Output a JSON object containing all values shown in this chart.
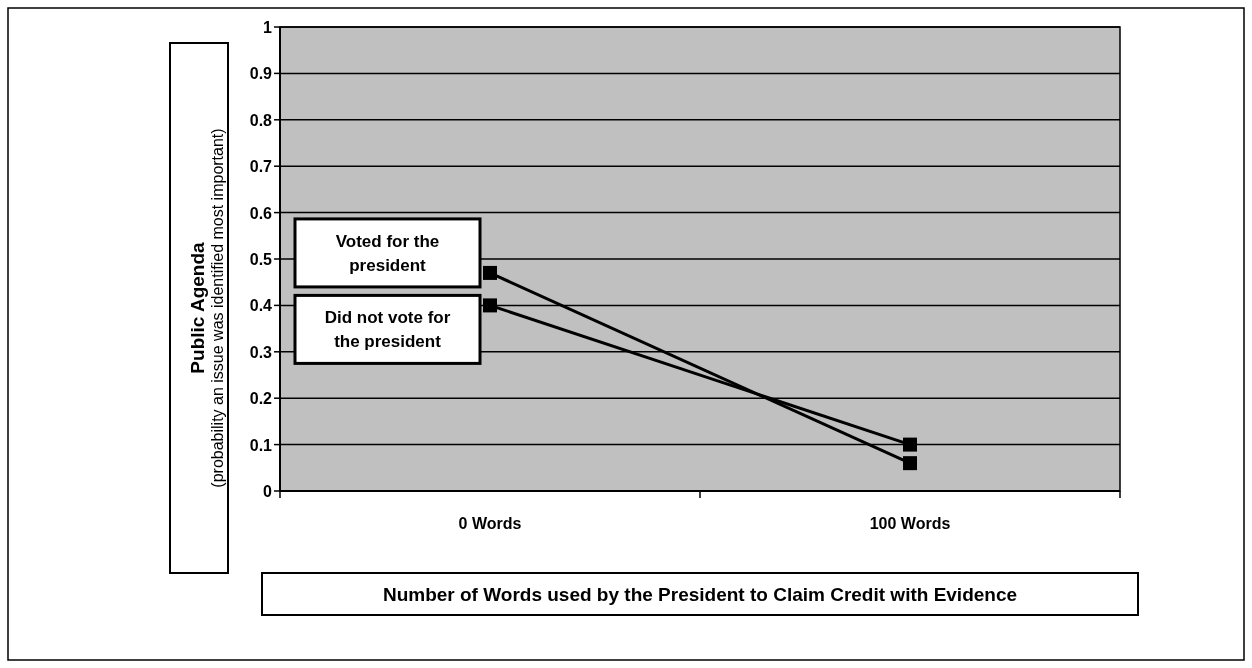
{
  "chart_data": {
    "type": "line",
    "xlabel": "Number of Words used by the President to Claim Credit with Evidence",
    "ylabel": "Public Agenda\n(probability an issue was identified most important)",
    "categories": [
      "0 Words",
      "100 Words"
    ],
    "series": [
      {
        "name": "Voted for the president",
        "color": "#000000",
        "values": [
          0.47,
          0.06
        ]
      },
      {
        "name": "Did not vote for the president",
        "color": "#000000",
        "values": [
          0.4,
          0.1
        ]
      }
    ],
    "ylim": [
      0,
      1
    ],
    "yticks": [
      0,
      0.1,
      0.2,
      0.3,
      0.4,
      0.5,
      0.6,
      0.7,
      0.8,
      0.9,
      1
    ],
    "grid": "y",
    "marker": "square",
    "line_style": "solid",
    "legend": false
  }
}
